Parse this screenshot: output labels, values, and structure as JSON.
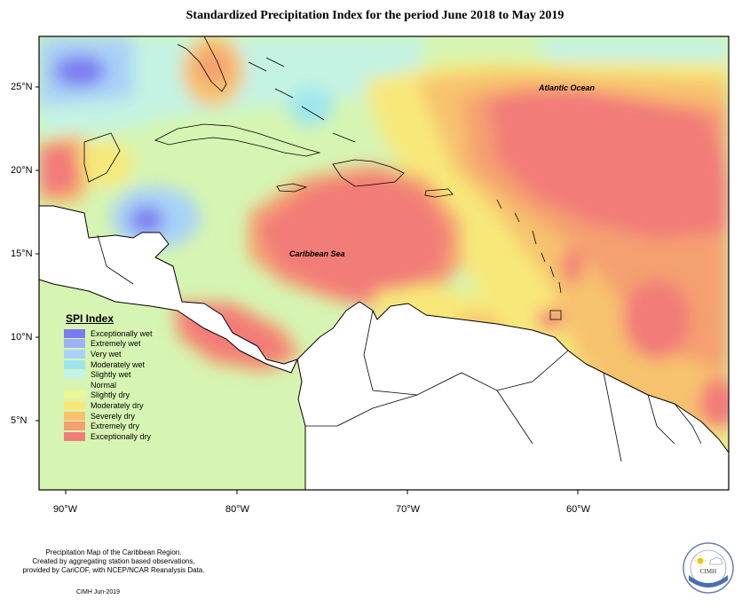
{
  "title": "Standardized Precipitation Index for the period June 2018 to May 2019",
  "map": {
    "latitude_labels": [
      "25°N",
      "20°N",
      "15°N",
      "10°N",
      "5°N"
    ],
    "longitude_labels": [
      "90°W",
      "80°W",
      "70°W",
      "60°W"
    ],
    "ocean_labels": {
      "atlantic": "Atlantic Ocean",
      "caribbean": "Caribbean Sea"
    }
  },
  "legend": {
    "title": "SPI Index",
    "items": [
      {
        "label": "Exceptionally wet",
        "color": "#7b7bf0"
      },
      {
        "label": "Extremely wet",
        "color": "#9cb2f5"
      },
      {
        "label": "Very wet",
        "color": "#a9d2f8"
      },
      {
        "label": "Moderately wet",
        "color": "#9ee6ee"
      },
      {
        "label": "Slightly wet",
        "color": "#c4f3e3"
      },
      {
        "label": "Normal",
        "color": "#d6f5b2"
      },
      {
        "label": "Slightly dry",
        "color": "#eef597"
      },
      {
        "label": "Moderately dry",
        "color": "#f8e87a"
      },
      {
        "label": "Severely dry",
        "color": "#f7c26e"
      },
      {
        "label": "Extremely dry",
        "color": "#f5a070"
      },
      {
        "label": "Exceptionally dry",
        "color": "#f27c78"
      }
    ]
  },
  "footer": {
    "line1": "Precipitation Map of the Caribbean Region.",
    "line2": "Created by aggregating station based observations,",
    "line3": "provided by CariCOF, with NCEP/NCAR Reanalysis Data.",
    "credit": "CIMH Jun-2019"
  },
  "logo": {
    "text": "CIMH",
    "icons": [
      "sun-icon",
      "cloud-icon"
    ]
  }
}
